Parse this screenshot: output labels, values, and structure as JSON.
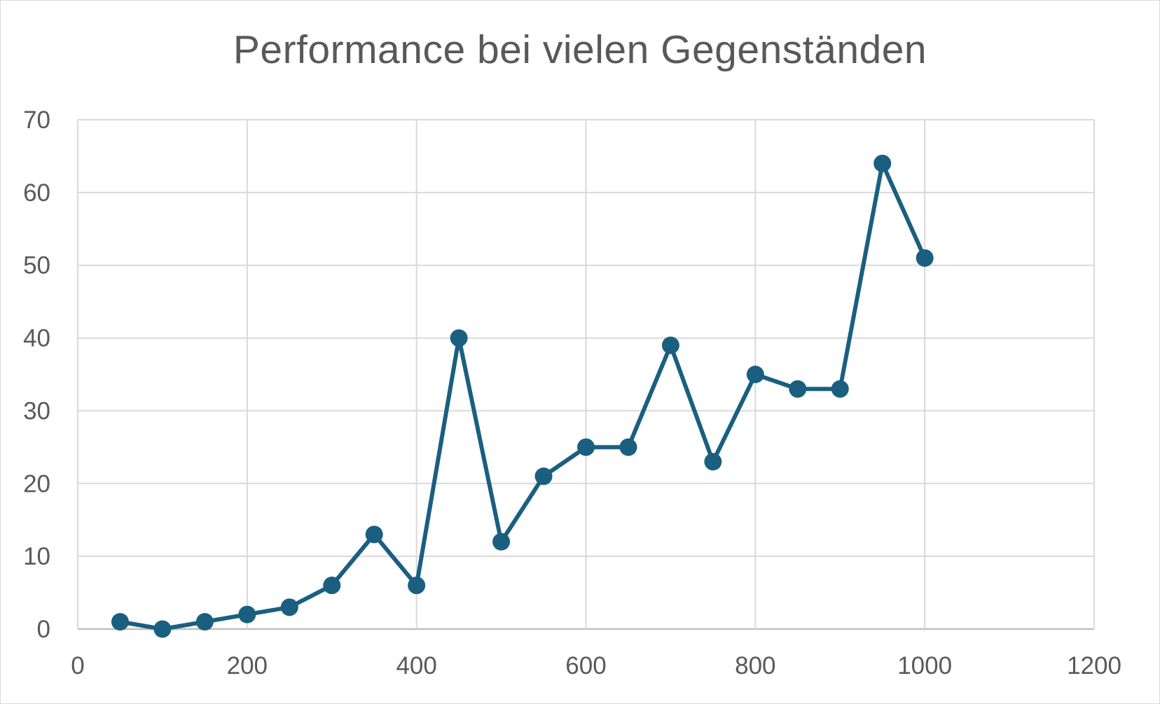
{
  "chart_data": {
    "type": "scatter",
    "title": "Performance bei vielen Gegenständen",
    "xlabel": "",
    "ylabel": "",
    "xlim": [
      0,
      1200
    ],
    "ylim": [
      0,
      70
    ],
    "x_ticks": [
      0,
      200,
      400,
      600,
      800,
      1000,
      1200
    ],
    "y_ticks": [
      0,
      10,
      20,
      30,
      40,
      50,
      60,
      70
    ],
    "x_tick_labels": [
      "0",
      "200",
      "400",
      "600",
      "800",
      "1000",
      "1200"
    ],
    "y_tick_labels": [
      "0",
      "10",
      "20",
      "30",
      "40",
      "50",
      "60",
      "70"
    ],
    "grid": true,
    "legend": "none",
    "series": [
      {
        "color": "#1a5f7f",
        "x": [
          50,
          100,
          150,
          200,
          250,
          300,
          350,
          400,
          450,
          500,
          550,
          600,
          650,
          700,
          750,
          800,
          850,
          900,
          950,
          1000
        ],
        "y": [
          1,
          0,
          1,
          2,
          3,
          6,
          13,
          6,
          40,
          12,
          21,
          25,
          25,
          39,
          23,
          35,
          33,
          33,
          64,
          51
        ]
      }
    ],
    "colors": {
      "line": "#1a5f7f",
      "grid": "#d9d9d9",
      "text": "#595959"
    }
  }
}
